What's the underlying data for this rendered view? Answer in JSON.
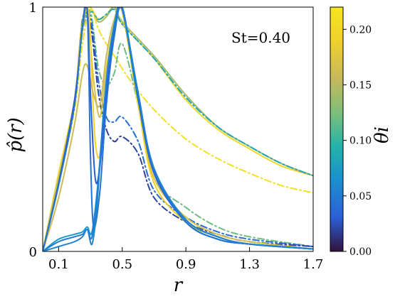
{
  "chart_data": {
    "type": "line",
    "annotation": "St=0.40",
    "xlabel": "r",
    "ylabel": "p̂(r)",
    "xlim": [
      0,
      1.7
    ],
    "ylim": [
      0,
      1
    ],
    "x_ticks": [
      "0.1",
      "0.5",
      "0.9",
      "1.3",
      "1.7"
    ],
    "x_tick_values": [
      0.1,
      0.5,
      0.9,
      1.3,
      1.7
    ],
    "y_ticks": [
      "0",
      "1"
    ],
    "y_tick_values": [
      0,
      1
    ],
    "colorbar": {
      "label": "θi",
      "range": [
        0,
        0.22
      ],
      "ticks": [
        "0.00",
        "0.05",
        "0.10",
        "0.15",
        "0.20"
      ],
      "tick_values": [
        0,
        0.05,
        0.1,
        0.15,
        0.2
      ],
      "colormap": [
        "#30123b",
        "#2c5fd6",
        "#1a8fd0",
        "#22b3a8",
        "#7fbf7a",
        "#c7b95a",
        "#f0d02c",
        "#f6e620"
      ]
    },
    "series": [
      {
        "theta": 0.2,
        "style": "solid",
        "x": [
          0,
          0.1,
          0.2,
          0.25,
          0.29,
          0.35,
          0.4,
          0.45,
          0.5,
          0.7,
          0.9,
          1.1,
          1.3,
          1.5,
          1.7
        ],
        "y": [
          0,
          0.32,
          0.62,
          0.9,
          1.0,
          0.95,
          0.97,
          1.0,
          0.93,
          0.79,
          0.62,
          0.5,
          0.42,
          0.35,
          0.31
        ]
      },
      {
        "theta": 0.14,
        "style": "solid",
        "x": [
          0,
          0.1,
          0.2,
          0.25,
          0.3,
          0.35,
          0.4,
          0.45,
          0.5,
          0.7,
          0.9,
          1.1,
          1.3,
          1.5,
          1.7
        ],
        "y": [
          0,
          0.3,
          0.6,
          0.92,
          0.99,
          0.94,
          0.96,
          1.0,
          0.94,
          0.8,
          0.64,
          0.51,
          0.43,
          0.36,
          0.31
        ]
      },
      {
        "theta": 0.08,
        "style": "dashdot",
        "x": [
          0,
          0.1,
          0.2,
          0.25,
          0.3,
          0.35,
          0.4,
          0.45,
          0.5,
          0.7,
          0.9,
          1.1,
          1.3,
          1.5,
          1.7
        ],
        "y": [
          0,
          0.3,
          0.6,
          0.9,
          0.98,
          0.95,
          0.97,
          0.99,
          0.93,
          0.79,
          0.63,
          0.51,
          0.43,
          0.36,
          0.31
        ]
      },
      {
        "theta": 0.21,
        "style": "dashdot",
        "x": [
          0,
          0.1,
          0.2,
          0.25,
          0.3,
          0.35,
          0.4,
          0.45,
          0.55,
          0.7,
          0.9,
          1.1,
          1.3,
          1.5,
          1.7
        ],
        "y": [
          0,
          0.28,
          0.58,
          0.85,
          0.99,
          0.91,
          0.85,
          0.8,
          0.7,
          0.58,
          0.46,
          0.38,
          0.32,
          0.27,
          0.24
        ]
      },
      {
        "theta": 0.12,
        "style": "dashdot",
        "x": [
          0,
          0.1,
          0.2,
          0.25,
          0.3,
          0.35,
          0.4,
          0.45,
          0.5,
          0.6,
          0.7,
          0.9,
          1.1,
          1.3,
          1.7
        ],
        "y": [
          0,
          0.28,
          0.6,
          0.9,
          0.98,
          0.75,
          0.68,
          0.73,
          0.85,
          0.6,
          0.3,
          0.18,
          0.1,
          0.06,
          0.02
        ]
      },
      {
        "theta": 0.04,
        "style": "dashdot",
        "x": [
          0,
          0.1,
          0.2,
          0.25,
          0.3,
          0.35,
          0.4,
          0.45,
          0.5,
          0.6,
          0.7,
          0.9,
          1.1,
          1.3,
          1.7
        ],
        "y": [
          0,
          0.28,
          0.6,
          0.92,
          0.96,
          0.7,
          0.55,
          0.53,
          0.55,
          0.45,
          0.25,
          0.14,
          0.08,
          0.05,
          0.02
        ]
      },
      {
        "theta": 0.02,
        "style": "dashdot",
        "x": [
          0,
          0.1,
          0.2,
          0.25,
          0.3,
          0.35,
          0.4,
          0.45,
          0.5,
          0.6,
          0.7,
          0.9,
          1.1,
          1.3,
          1.7
        ],
        "y": [
          0,
          0.28,
          0.6,
          0.95,
          0.93,
          0.65,
          0.5,
          0.45,
          0.47,
          0.4,
          0.22,
          0.12,
          0.07,
          0.04,
          0.02
        ]
      },
      {
        "theta": 0.17,
        "style": "solid",
        "x": [
          0,
          0.1,
          0.2,
          0.24,
          0.28,
          0.32,
          0.36,
          0.4,
          0.45,
          0.5,
          0.6,
          0.7,
          0.9,
          1.1,
          1.3,
          1.7
        ],
        "y": [
          0,
          0.3,
          0.62,
          0.9,
          0.98,
          0.7,
          0.55,
          0.75,
          0.93,
          0.98,
          0.6,
          0.3,
          0.14,
          0.07,
          0.04,
          0.01
        ]
      },
      {
        "theta": 0.19,
        "style": "solid",
        "x": [
          0,
          0.1,
          0.2,
          0.25,
          0.29,
          0.31,
          0.33,
          0.36,
          0.4,
          0.45,
          0.5,
          0.6,
          0.7,
          0.9,
          1.1,
          1.3,
          1.7
        ],
        "y": [
          0,
          0.28,
          0.62,
          0.92,
          0.98,
          0.7,
          0.45,
          0.4,
          0.7,
          0.93,
          0.98,
          0.6,
          0.28,
          0.12,
          0.06,
          0.03,
          0.01
        ]
      },
      {
        "theta": 0.16,
        "style": "solid",
        "x": [
          0,
          0.1,
          0.2,
          0.25,
          0.28,
          0.32,
          0.36,
          0.4,
          0.45,
          0.5,
          0.6,
          0.7,
          0.9,
          1.1,
          1.3,
          1.7
        ],
        "y": [
          0,
          0.22,
          0.52,
          0.73,
          0.76,
          0.64,
          0.6,
          0.8,
          0.95,
          0.99,
          0.62,
          0.32,
          0.13,
          0.06,
          0.03,
          0.01
        ]
      },
      {
        "theta": 0.07,
        "style": "solid",
        "x": [
          0,
          0.1,
          0.2,
          0.25,
          0.28,
          0.31,
          0.35,
          0.4,
          0.45,
          0.5,
          0.6,
          0.7,
          0.9,
          1.1,
          1.3,
          1.7
        ],
        "y": [
          0,
          0.05,
          0.07,
          0.08,
          0.1,
          0.08,
          0.3,
          0.7,
          0.93,
          0.99,
          0.62,
          0.33,
          0.13,
          0.06,
          0.03,
          0.01
        ]
      },
      {
        "theta": 0.05,
        "style": "solid",
        "x": [
          0,
          0.1,
          0.2,
          0.25,
          0.28,
          0.31,
          0.35,
          0.4,
          0.45,
          0.5,
          0.6,
          0.7,
          0.9,
          1.1,
          1.3,
          1.7
        ],
        "y": [
          0,
          0.04,
          0.06,
          0.07,
          0.09,
          0.06,
          0.28,
          0.68,
          0.92,
          1.0,
          0.63,
          0.33,
          0.12,
          0.05,
          0.03,
          0.01
        ]
      },
      {
        "theta": 0.03,
        "style": "solid",
        "x": [
          0,
          0.1,
          0.2,
          0.25,
          0.28,
          0.3,
          0.33,
          0.36,
          0.4,
          0.45,
          0.5,
          0.6,
          0.7,
          0.9,
          1.1,
          1.3,
          1.7
        ],
        "y": [
          0,
          0.28,
          0.62,
          0.92,
          0.99,
          0.65,
          0.3,
          0.35,
          0.65,
          0.9,
          1.0,
          0.63,
          0.32,
          0.12,
          0.05,
          0.03,
          0.01
        ]
      },
      {
        "theta": 0.045,
        "style": "solid",
        "x": [
          0,
          0.1,
          0.2,
          0.25,
          0.28,
          0.3,
          0.32,
          0.36,
          0.4,
          0.45,
          0.5,
          0.6,
          0.7,
          0.9,
          1.1,
          1.3,
          1.7
        ],
        "y": [
          0,
          0.27,
          0.6,
          0.93,
          0.98,
          0.4,
          0.1,
          0.25,
          0.6,
          0.88,
          0.99,
          0.64,
          0.33,
          0.12,
          0.05,
          0.03,
          0.01
        ]
      },
      {
        "theta": 0.055,
        "style": "solid",
        "x": [
          0,
          0.1,
          0.2,
          0.25,
          0.28,
          0.31,
          0.34,
          0.38,
          0.42,
          0.46,
          0.5,
          0.6,
          0.7,
          0.9,
          1.1,
          1.3,
          1.7
        ],
        "y": [
          0,
          0.02,
          0.04,
          0.06,
          0.09,
          0.03,
          0.18,
          0.55,
          0.8,
          0.95,
          1.0,
          0.65,
          0.34,
          0.13,
          0.06,
          0.03,
          0.01
        ]
      }
    ]
  }
}
